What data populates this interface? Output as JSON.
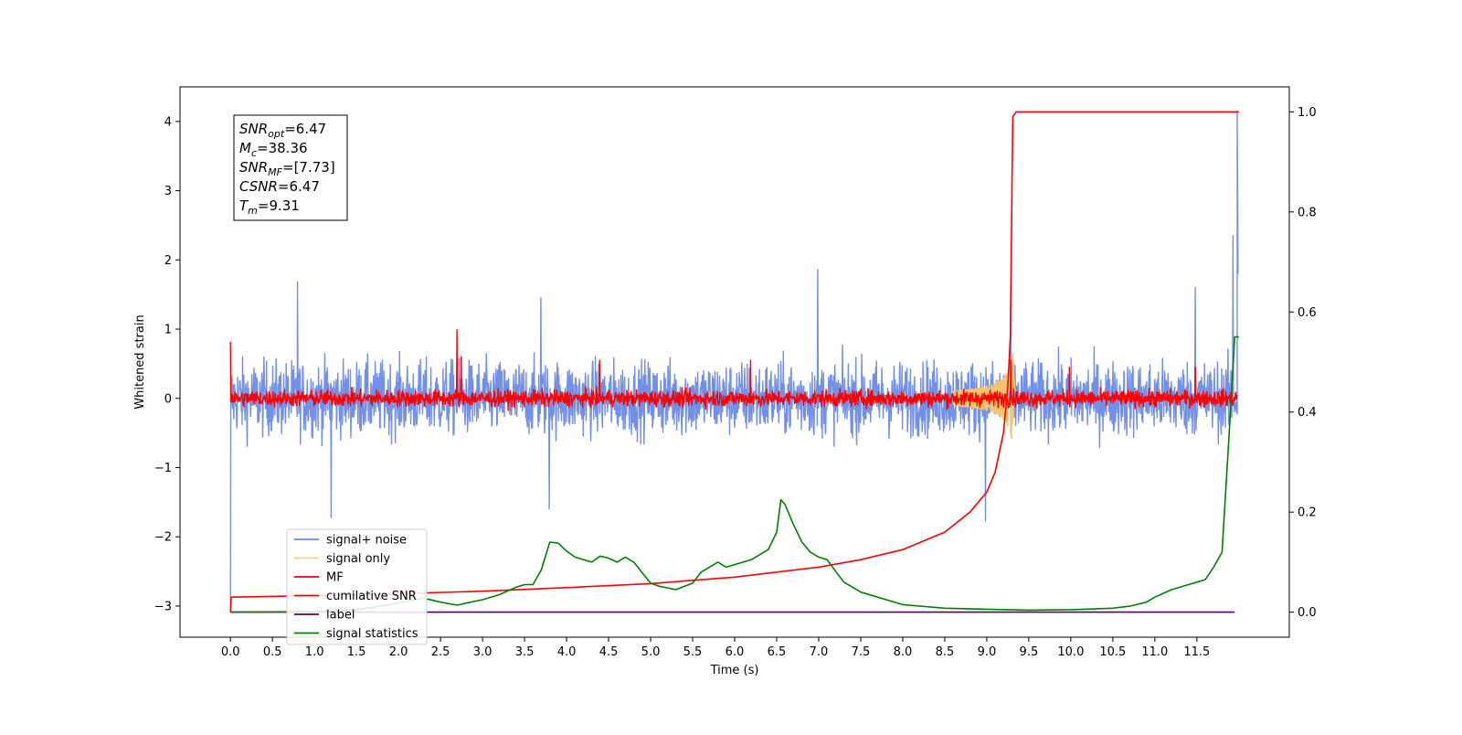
{
  "chart_data": {
    "type": "line",
    "title": "",
    "xlabel": "Time (s)",
    "ylabel": "Whitened strain",
    "y2label": "",
    "xlim": [
      -0.6,
      12.6
    ],
    "ylim": [
      -3.45,
      4.5
    ],
    "y2lim": [
      -0.05,
      1.05
    ],
    "x_ticks": [
      "0.0",
      "0.5",
      "1.0",
      "1.5",
      "2.0",
      "2.5",
      "3.0",
      "3.5",
      "4.0",
      "4.5",
      "5.0",
      "5.5",
      "6.0",
      "6.5",
      "7.0",
      "7.5",
      "8.0",
      "8.5",
      "9.0",
      "9.5",
      "10.0",
      "10.5",
      "11.0",
      "11.5"
    ],
    "y_ticks": [
      "4",
      "3",
      "2",
      "1",
      "0",
      "−1",
      "−2",
      "−3"
    ],
    "y2_ticks": [
      "1.0",
      "0.8",
      "0.6",
      "0.4",
      "0.2",
      "0.0"
    ],
    "grid": false,
    "legend_position": "lower-left",
    "annotation_box": {
      "lines": [
        {
          "sym": "SNR",
          "sub": "opt",
          "value": "=6.47"
        },
        {
          "sym": "M",
          "sub": "c",
          "value": "=38.36"
        },
        {
          "sym": "SNR",
          "sub": "MF",
          "value": "=[7.73]"
        },
        {
          "sym": "CSNR",
          "sub": "",
          "value": "=6.47"
        },
        {
          "sym": "T",
          "sub": "m",
          "value": "=9.31"
        }
      ]
    },
    "series": [
      {
        "name": "signal+ noise",
        "axis": "left",
        "color": "#6b8ae6",
        "kind": "noise",
        "amplitude": 0.55,
        "spikes": [
          [
            0.8,
            1.68
          ],
          [
            1.2,
            -1.72
          ],
          [
            3.7,
            1.45
          ],
          [
            3.8,
            -1.6
          ],
          [
            7.0,
            1.86
          ],
          [
            9.0,
            -1.77
          ],
          [
            9.3,
            1.4
          ],
          [
            11.5,
            1.6
          ],
          [
            11.95,
            2.35
          ]
        ]
      },
      {
        "name": "signal only",
        "axis": "left",
        "color": "#f5c56b",
        "kind": "chirp",
        "peak_time": 9.31,
        "amplitude": 0.7
      },
      {
        "name": "MF",
        "axis": "left",
        "color": "#ff0000",
        "kind": "noise",
        "amplitude": 0.12,
        "spikes": [
          [
            2.7,
            0.99
          ],
          [
            2.75,
            0.6
          ],
          [
            4.4,
            0.55
          ],
          [
            6.2,
            0.55
          ],
          [
            9.3,
            0.55
          ],
          [
            10.0,
            0.45
          ],
          [
            11.5,
            0.45
          ]
        ]
      },
      {
        "name": "cumilative SNR",
        "axis": "right",
        "color": "#ff0000",
        "x": [
          0.0,
          0.01,
          1.0,
          2.0,
          3.0,
          4.0,
          5.0,
          6.0,
          7.0,
          7.5,
          8.0,
          8.5,
          8.8,
          9.0,
          9.1,
          9.2,
          9.25,
          9.28,
          9.3,
          9.31,
          9.35,
          12.0
        ],
        "y": [
          0.0,
          0.03,
          0.033,
          0.037,
          0.042,
          0.049,
          0.057,
          0.07,
          0.09,
          0.105,
          0.125,
          0.16,
          0.2,
          0.24,
          0.28,
          0.36,
          0.45,
          0.55,
          0.85,
          0.99,
          1.0,
          1.0
        ]
      },
      {
        "name": "label",
        "axis": "right",
        "color": "#5b005b",
        "x": [
          0.0,
          11.95
        ],
        "y": [
          0.0,
          0.0
        ]
      },
      {
        "name": "signal statistics",
        "axis": "right",
        "color": "#008000",
        "x": [
          0.0,
          1.0,
          1.5,
          1.9,
          2.1,
          2.3,
          2.5,
          2.7,
          2.8,
          3.0,
          3.2,
          3.4,
          3.5,
          3.6,
          3.7,
          3.8,
          3.9,
          4.0,
          4.1,
          4.3,
          4.4,
          4.5,
          4.6,
          4.7,
          4.8,
          5.0,
          5.1,
          5.3,
          5.5,
          5.6,
          5.8,
          5.9,
          6.0,
          6.1,
          6.2,
          6.3,
          6.4,
          6.5,
          6.55,
          6.6,
          6.7,
          6.8,
          6.9,
          7.0,
          7.1,
          7.2,
          7.3,
          7.5,
          8.0,
          8.5,
          9.0,
          9.5,
          10.0,
          10.5,
          10.7,
          10.9,
          11.0,
          11.2,
          11.4,
          11.5,
          11.6,
          11.7,
          11.8,
          11.9,
          11.95,
          12.0
        ],
        "y": [
          0.0,
          0.001,
          0.005,
          0.015,
          0.022,
          0.028,
          0.02,
          0.014,
          0.018,
          0.025,
          0.035,
          0.05,
          0.055,
          0.055,
          0.085,
          0.14,
          0.138,
          0.122,
          0.11,
          0.1,
          0.112,
          0.108,
          0.1,
          0.11,
          0.1,
          0.058,
          0.052,
          0.045,
          0.058,
          0.08,
          0.1,
          0.09,
          0.095,
          0.1,
          0.105,
          0.115,
          0.125,
          0.16,
          0.225,
          0.215,
          0.175,
          0.14,
          0.12,
          0.11,
          0.105,
          0.082,
          0.06,
          0.04,
          0.015,
          0.008,
          0.006,
          0.004,
          0.005,
          0.008,
          0.012,
          0.02,
          0.03,
          0.045,
          0.055,
          0.06,
          0.065,
          0.09,
          0.12,
          0.4,
          0.55,
          0.55
        ]
      }
    ]
  }
}
